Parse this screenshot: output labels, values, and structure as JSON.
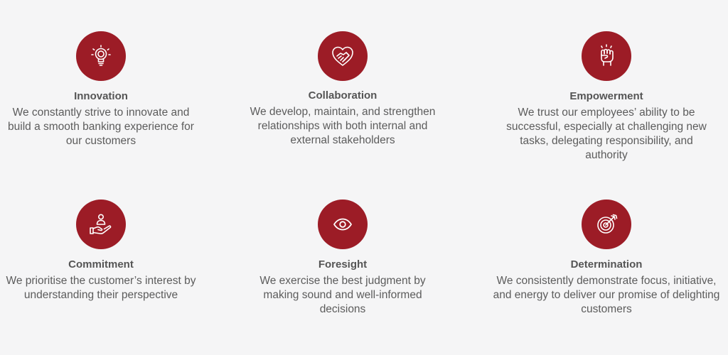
{
  "values": [
    {
      "title": "Innovation",
      "description": "We constantly strive to innovate and build a smooth banking experience for our customers",
      "icon": "lightbulb-icon"
    },
    {
      "title": "Collaboration",
      "description": "We develop, maintain, and strengthen relationships with both internal and external stakeholders",
      "icon": "handshake-heart-icon"
    },
    {
      "title": "Empowerment",
      "description": "We trust our employees’ ability to be successful, especially at challenging new tasks, delegating responsibility, and authority",
      "icon": "raised-fist-icon"
    },
    {
      "title": "Commitment",
      "description": "We prioritise the customer’s interest by understanding their perspective",
      "icon": "hand-person-icon"
    },
    {
      "title": "Foresight",
      "description": "We exercise the best judgment by making sound and well-informed decisions",
      "icon": "eye-icon"
    },
    {
      "title": "Determination",
      "description": "We consistently demonstrate focus, initiative, and energy to deliver our promise of delighting customers",
      "icon": "target-arrow-icon"
    }
  ],
  "colors": {
    "accent": "#9c1c26",
    "background": "#f5f5f6",
    "text": "#5a5a5a"
  }
}
